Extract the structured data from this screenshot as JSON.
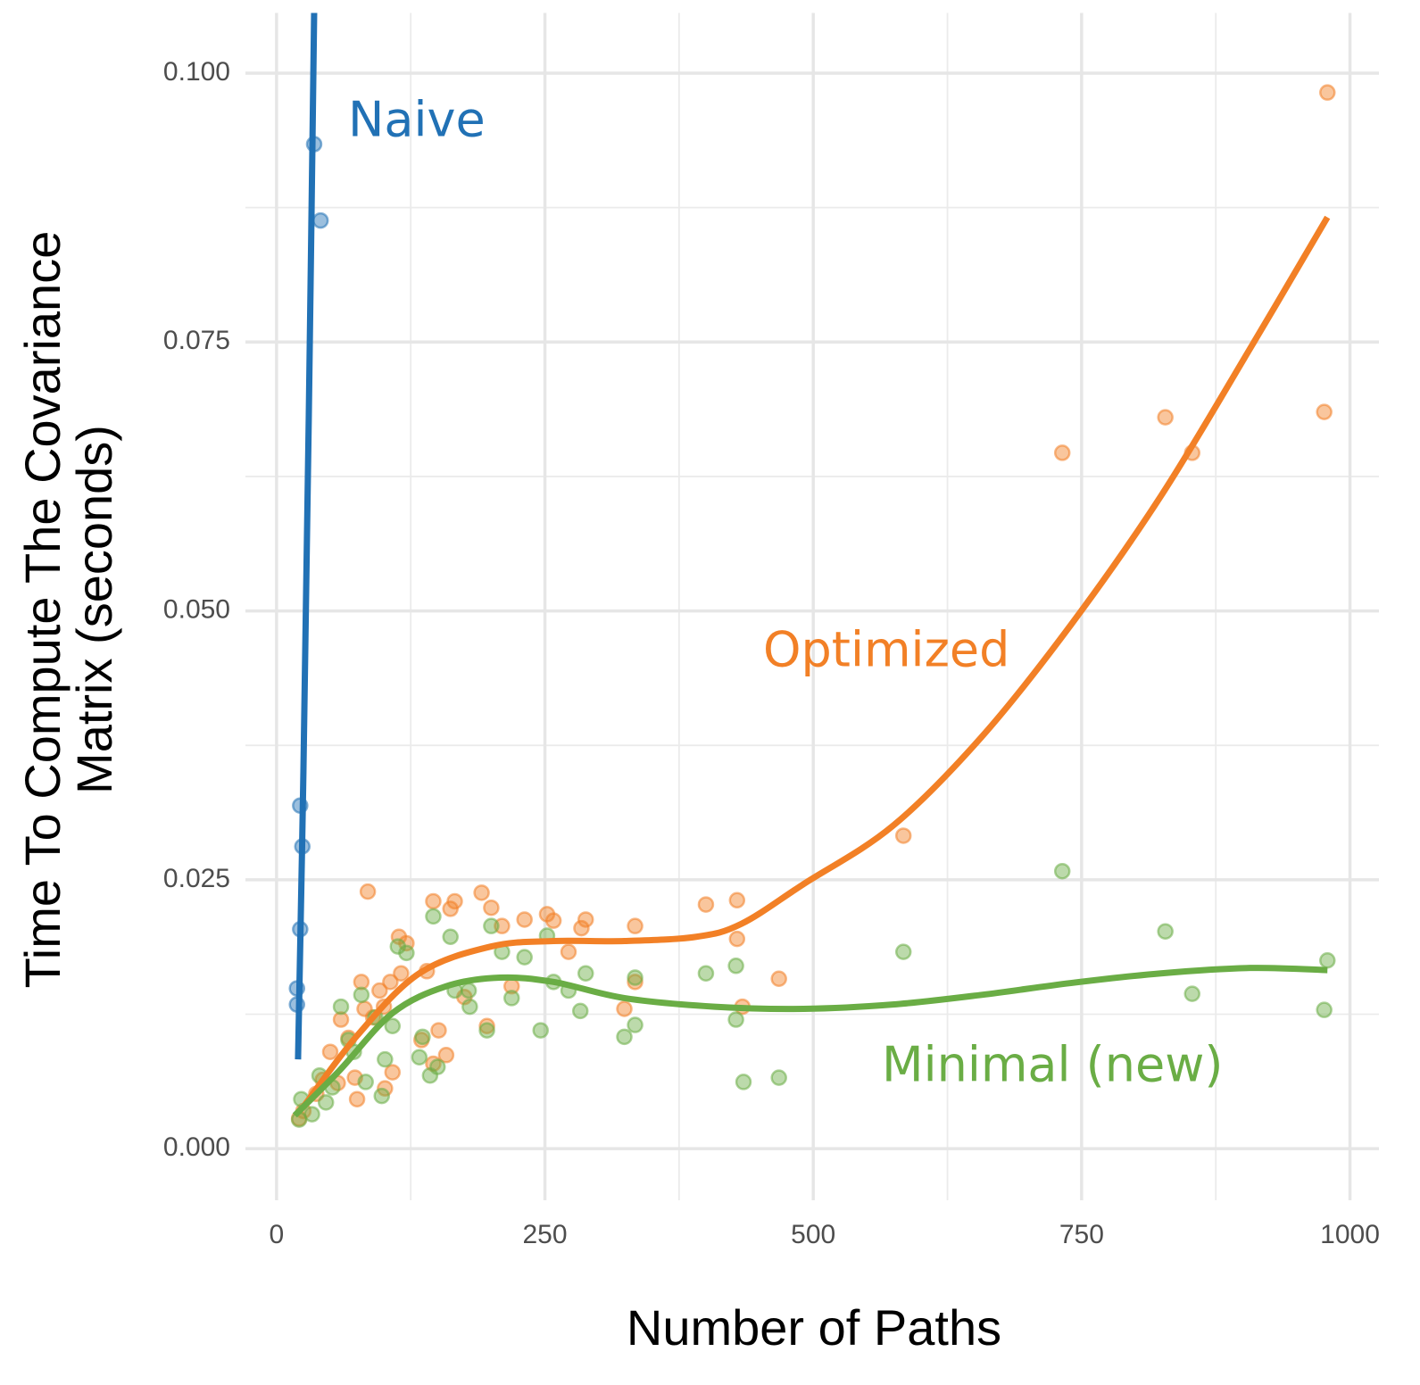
{
  "chart_data": {
    "type": "scatter",
    "x_label": "Number of Paths",
    "y_label": [
      "Time To Compute The Covariance",
      "Matrix (seconds)"
    ],
    "xlim": [
      -29,
      1027
    ],
    "ylim": [
      -0.0048,
      0.1056
    ],
    "xticks": [
      0,
      250,
      500,
      750,
      1000
    ],
    "yticks": [
      {
        "value": 0,
        "label": "0.000"
      },
      0.025,
      {
        "value": 0.05,
        "label": "0.050"
      },
      0.075,
      {
        "value": 0.1,
        "label": "0.100"
      }
    ],
    "grid": true,
    "series": [
      {
        "name": "Naive",
        "color": "#2171b5",
        "points": {
          "x": [
            35,
            41,
            22,
            24,
            22,
            19,
            19
          ],
          "y": [
            0.0934,
            0.0863,
            0.0319,
            0.0281,
            0.0204,
            0.0149,
            0.0134
          ]
        },
        "fit": {
          "x": [
            20,
            25,
            30,
            35
          ],
          "y": [
            0.0083,
            0.035,
            0.068,
            0.1056
          ]
        }
      },
      {
        "name": "Optimized",
        "color": "#f28026",
        "points": {
          "x": [
            21,
            25,
            37,
            43,
            50,
            57,
            60,
            67,
            73,
            75,
            79,
            82,
            85,
            90,
            96,
            100,
            101,
            106,
            108,
            114,
            116,
            121,
            135,
            140,
            146,
            146,
            151,
            158,
            162,
            166,
            175,
            191,
            196,
            200,
            210,
            219,
            231,
            252,
            258,
            272,
            284,
            288,
            324,
            334,
            334,
            400,
            429,
            429,
            434,
            468,
            584,
            732,
            828,
            853,
            976,
            979
          ],
          "y": [
            0.0028,
            0.0035,
            0.0051,
            0.0064,
            0.009,
            0.0061,
            0.012,
            0.0103,
            0.0066,
            0.0046,
            0.0155,
            0.013,
            0.0239,
            0.0122,
            0.0147,
            0.0132,
            0.0056,
            0.0155,
            0.0071,
            0.0197,
            0.0163,
            0.0191,
            0.0101,
            0.0165,
            0.0079,
            0.023,
            0.011,
            0.0087,
            0.0223,
            0.023,
            0.0141,
            0.0238,
            0.0114,
            0.0224,
            0.0207,
            0.0151,
            0.0213,
            0.0218,
            0.0212,
            0.0183,
            0.0205,
            0.0213,
            0.013,
            0.0207,
            0.0155,
            0.0227,
            0.0231,
            0.0195,
            0.0132,
            0.0158,
            0.0291,
            0.0647,
            0.068,
            0.0647,
            0.0685,
            0.0982
          ]
        },
        "fit": {
          "x": [
            25,
            75,
            133,
            200,
            258,
            324,
            391,
            433,
            491,
            574,
            657,
            740,
            824,
            907,
            979
          ],
          "y": [
            0.0039,
            0.0105,
            0.0163,
            0.0188,
            0.0193,
            0.0193,
            0.0197,
            0.0209,
            0.0246,
            0.03,
            0.0383,
            0.0487,
            0.0607,
            0.0744,
            0.0866
          ]
        }
      },
      {
        "name": "Minimal (new)",
        "color": "#6aad45",
        "points": {
          "x": [
            21,
            23,
            33,
            40,
            46,
            52,
            60,
            67,
            72,
            79,
            83,
            92,
            98,
            101,
            108,
            113,
            121,
            133,
            136,
            143,
            146,
            150,
            162,
            166,
            179,
            180,
            196,
            200,
            210,
            219,
            231,
            246,
            252,
            258,
            272,
            283,
            288,
            324,
            334,
            334,
            400,
            428,
            428,
            435,
            468,
            584,
            732,
            828,
            853,
            976,
            979
          ],
          "y": [
            0.0027,
            0.0046,
            0.0032,
            0.0068,
            0.0043,
            0.0057,
            0.0132,
            0.0101,
            0.009,
            0.0143,
            0.0062,
            0.0122,
            0.0049,
            0.0083,
            0.0114,
            0.0188,
            0.0182,
            0.0085,
            0.0104,
            0.0068,
            0.0216,
            0.0076,
            0.0197,
            0.0147,
            0.0147,
            0.0132,
            0.011,
            0.0207,
            0.0183,
            0.014,
            0.0178,
            0.011,
            0.0198,
            0.0155,
            0.0147,
            0.0128,
            0.0163,
            0.0104,
            0.0159,
            0.0115,
            0.0163,
            0.017,
            0.012,
            0.0062,
            0.0066,
            0.0183,
            0.0258,
            0.0202,
            0.0144,
            0.0129,
            0.0175
          ]
        },
        "fit": {
          "x": [
            17,
            58,
            108,
            158,
            208,
            258,
            324,
            408,
            491,
            574,
            657,
            740,
            824,
            907,
            979
          ],
          "y": [
            0.0031,
            0.0072,
            0.0126,
            0.0151,
            0.0159,
            0.0155,
            0.014,
            0.0132,
            0.013,
            0.0134,
            0.0143,
            0.0154,
            0.0163,
            0.0168,
            0.0166
          ]
        }
      }
    ]
  }
}
